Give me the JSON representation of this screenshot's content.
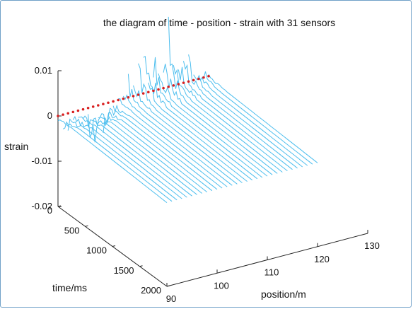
{
  "chart_data": {
    "type": "line",
    "title": "the diagram of time - position - strain with 31 sensors",
    "xlabel": "time/ms",
    "ylabel": "position/m",
    "zlabel": "strain",
    "xlim": [
      0,
      2000
    ],
    "ylim": [
      90,
      130
    ],
    "zlim": [
      -0.02,
      0.01
    ],
    "x_ticks": [
      "0",
      "500",
      "1000",
      "1500",
      "2000"
    ],
    "y_ticks": [
      "90",
      "100",
      "110",
      "120",
      "130"
    ],
    "z_ticks": [
      "-0.02",
      "-0.01",
      "0",
      "0.01"
    ],
    "grid": false,
    "series_count": 31,
    "positions": [
      90,
      91,
      92,
      93,
      94,
      95,
      96,
      97,
      98,
      99,
      100,
      101,
      102,
      103,
      104,
      105,
      106,
      107,
      108,
      109,
      110,
      111,
      112,
      113,
      114,
      115,
      116,
      117,
      118,
      119,
      120
    ],
    "sensor_marker_time": 0,
    "peak_strain": [
      -0.001,
      -0.003,
      -0.004,
      -0.005,
      -0.004,
      -0.006,
      -0.007,
      -0.009,
      -0.007,
      -0.005,
      -0.003,
      -0.002,
      0.002,
      0.003,
      0.004,
      0.006,
      0.008,
      0.011,
      0.009,
      0.008,
      0.01,
      0.011,
      0.012,
      0.01,
      0.009,
      0.007,
      0.005,
      0.004,
      0.003,
      0.002,
      0.001
    ],
    "line_color": "#4dbeee",
    "marker_color": "#d81f1f"
  }
}
